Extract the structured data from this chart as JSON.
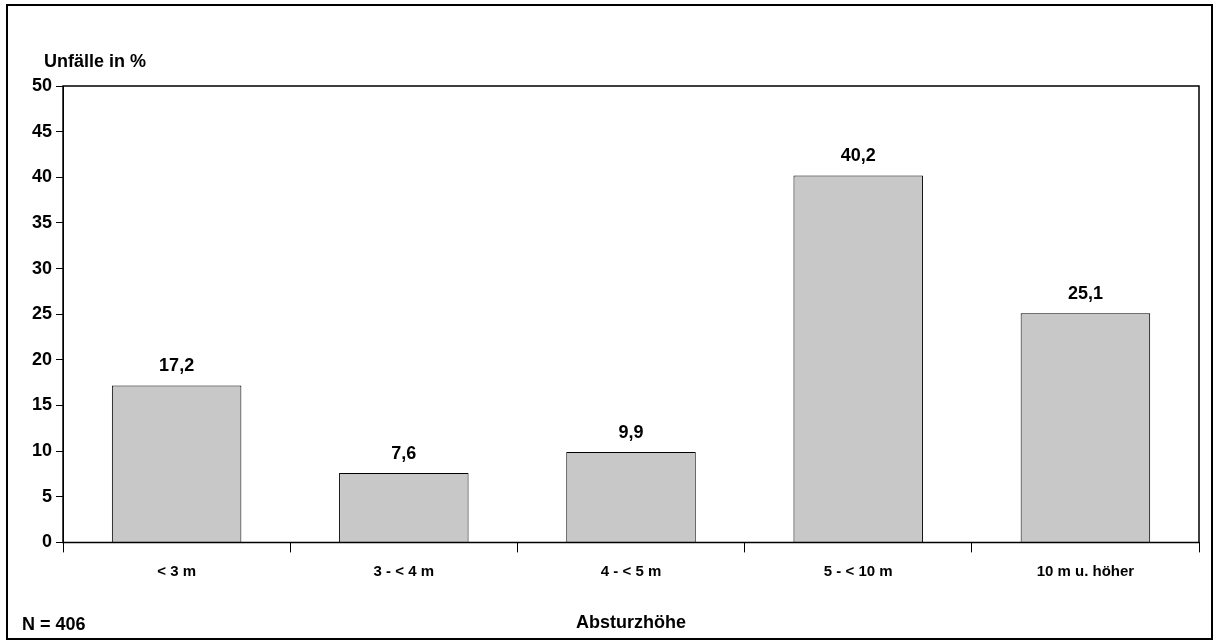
{
  "chart_data": {
    "type": "bar",
    "ylabel": "Unfälle in %",
    "xlabel": "Absturzhöhe",
    "categories": [
      "< 3 m",
      "3 - < 4 m",
      "4 - < 5 m",
      "5 - < 10 m",
      "10 m u. höher"
    ],
    "values": [
      17.2,
      7.6,
      9.9,
      40.2,
      25.1
    ],
    "value_labels": [
      "17,2",
      "7,6",
      "9,9",
      "40,2",
      "25,1"
    ],
    "color": "#c8c8c8",
    "ylim": [
      0,
      50
    ],
    "yticks": [
      0,
      5,
      10,
      15,
      20,
      25,
      30,
      35,
      40,
      45,
      50
    ],
    "grid": false,
    "legend": false,
    "annotations": [
      "N = 406"
    ]
  }
}
